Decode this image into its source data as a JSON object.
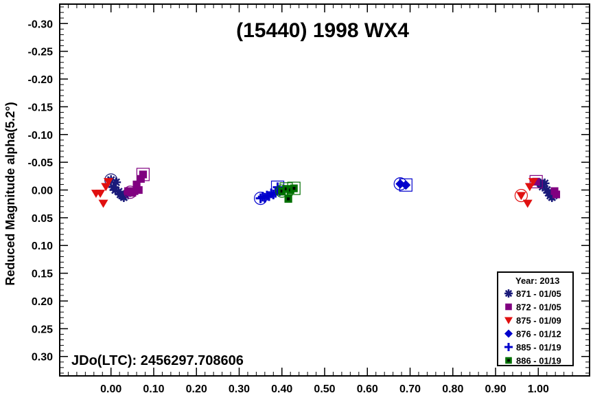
{
  "chart_data": {
    "type": "scatter",
    "title": "(15440) 1998 WX4",
    "xlabel": "",
    "ylabel": "Reduced Magnitude alpha(5.2°)",
    "annotation": "JDo(LTC): 2456297.708606",
    "legend_title": "Year: 2013",
    "legend_position": "bottom-right",
    "xlim": [
      -0.12,
      1.12
    ],
    "ylim": [
      -0.335,
      0.335
    ],
    "y_inverted": true,
    "grid": false,
    "x_ticks": [
      "0.00",
      "0.10",
      "0.20",
      "0.30",
      "0.40",
      "0.50",
      "0.60",
      "0.70",
      "0.80",
      "0.90",
      "1.00"
    ],
    "y_ticks": [
      "-0.30",
      "-0.25",
      "-0.20",
      "-0.15",
      "-0.10",
      "-0.05",
      "0.00",
      "0.05",
      "0.10",
      "0.15",
      "0.20",
      "0.25",
      "0.30"
    ],
    "series": [
      {
        "name": "871 - 01/05",
        "marker": "asterisk",
        "color": "#1a1a7a",
        "circled": [
          [
            0.0,
            -0.018
          ]
        ],
        "points": [
          [
            0.0,
            -0.018
          ],
          [
            0.005,
            -0.005
          ],
          [
            0.01,
            0.0
          ],
          [
            0.012,
            -0.014
          ],
          [
            0.018,
            0.003
          ],
          [
            0.022,
            0.008
          ],
          [
            0.026,
            0.01
          ],
          [
            0.03,
            0.013
          ],
          [
            0.034,
            0.01
          ],
          [
            0.038,
            0.006
          ],
          [
            1.005,
            -0.012
          ],
          [
            1.01,
            -0.006
          ],
          [
            1.015,
            -0.012
          ],
          [
            1.02,
            0.0
          ],
          [
            1.024,
            0.005
          ],
          [
            1.028,
            0.01
          ],
          [
            1.032,
            0.013
          ],
          [
            1.036,
            0.01
          ]
        ]
      },
      {
        "name": "872 - 01/05",
        "marker": "square",
        "color": "#800080",
        "circled": [
          [
            0.045,
            0.004
          ]
        ],
        "boxed": [
          [
            0.075,
            -0.028
          ],
          [
            0.995,
            -0.015
          ]
        ],
        "points": [
          [
            0.04,
            0.002
          ],
          [
            0.045,
            0.004
          ],
          [
            0.05,
            0.005
          ],
          [
            0.055,
            0.002
          ],
          [
            0.06,
            -0.01
          ],
          [
            0.065,
            0.0
          ],
          [
            0.07,
            -0.02
          ],
          [
            0.075,
            -0.028
          ],
          [
            0.995,
            -0.015
          ],
          [
            1.038,
            0.002
          ],
          [
            1.042,
            0.008
          ]
        ]
      },
      {
        "name": "875 - 01/09",
        "marker": "triangle-down",
        "color": "#e01010",
        "circled": [
          [
            0.96,
            0.01
          ]
        ],
        "points": [
          [
            -0.035,
            0.006
          ],
          [
            -0.025,
            0.006
          ],
          [
            -0.018,
            0.024
          ],
          [
            -0.012,
            -0.006
          ],
          [
            -0.006,
            -0.015
          ],
          [
            0.96,
            0.01
          ],
          [
            0.975,
            0.024
          ],
          [
            0.98,
            -0.006
          ],
          [
            0.988,
            -0.015
          ]
        ]
      },
      {
        "name": "876 - 01/12",
        "marker": "diamond",
        "color": "#0000cc",
        "circled": [
          [
            0.677,
            -0.011
          ]
        ],
        "boxed": [
          [
            0.69,
            -0.009
          ]
        ],
        "points": [
          [
            0.677,
            -0.011
          ],
          [
            0.69,
            -0.009
          ]
        ]
      },
      {
        "name": "885 - 01/19",
        "marker": "plus",
        "color": "#0000cc",
        "circled": [
          [
            0.35,
            0.015
          ]
        ],
        "boxed": [
          [
            0.39,
            -0.005
          ]
        ],
        "points": [
          [
            0.35,
            0.015
          ],
          [
            0.355,
            0.012
          ],
          [
            0.36,
            0.014
          ],
          [
            0.365,
            0.01
          ],
          [
            0.37,
            0.011
          ],
          [
            0.375,
            0.006
          ],
          [
            0.38,
            0.008
          ],
          [
            0.385,
            0.005
          ],
          [
            0.39,
            -0.005
          ],
          [
            0.395,
            0.002
          ]
        ]
      },
      {
        "name": "886 - 01/19",
        "marker": "square-filled",
        "color": "#007000",
        "circled": [
          [
            0.4,
            0.002
          ]
        ],
        "boxed": [
          [
            0.41,
            -0.002
          ],
          [
            0.428,
            -0.003
          ]
        ],
        "points": [
          [
            0.4,
            0.002
          ],
          [
            0.41,
            -0.002
          ],
          [
            0.415,
            0.016
          ],
          [
            0.42,
            0.0
          ],
          [
            0.428,
            -0.003
          ]
        ]
      }
    ]
  }
}
